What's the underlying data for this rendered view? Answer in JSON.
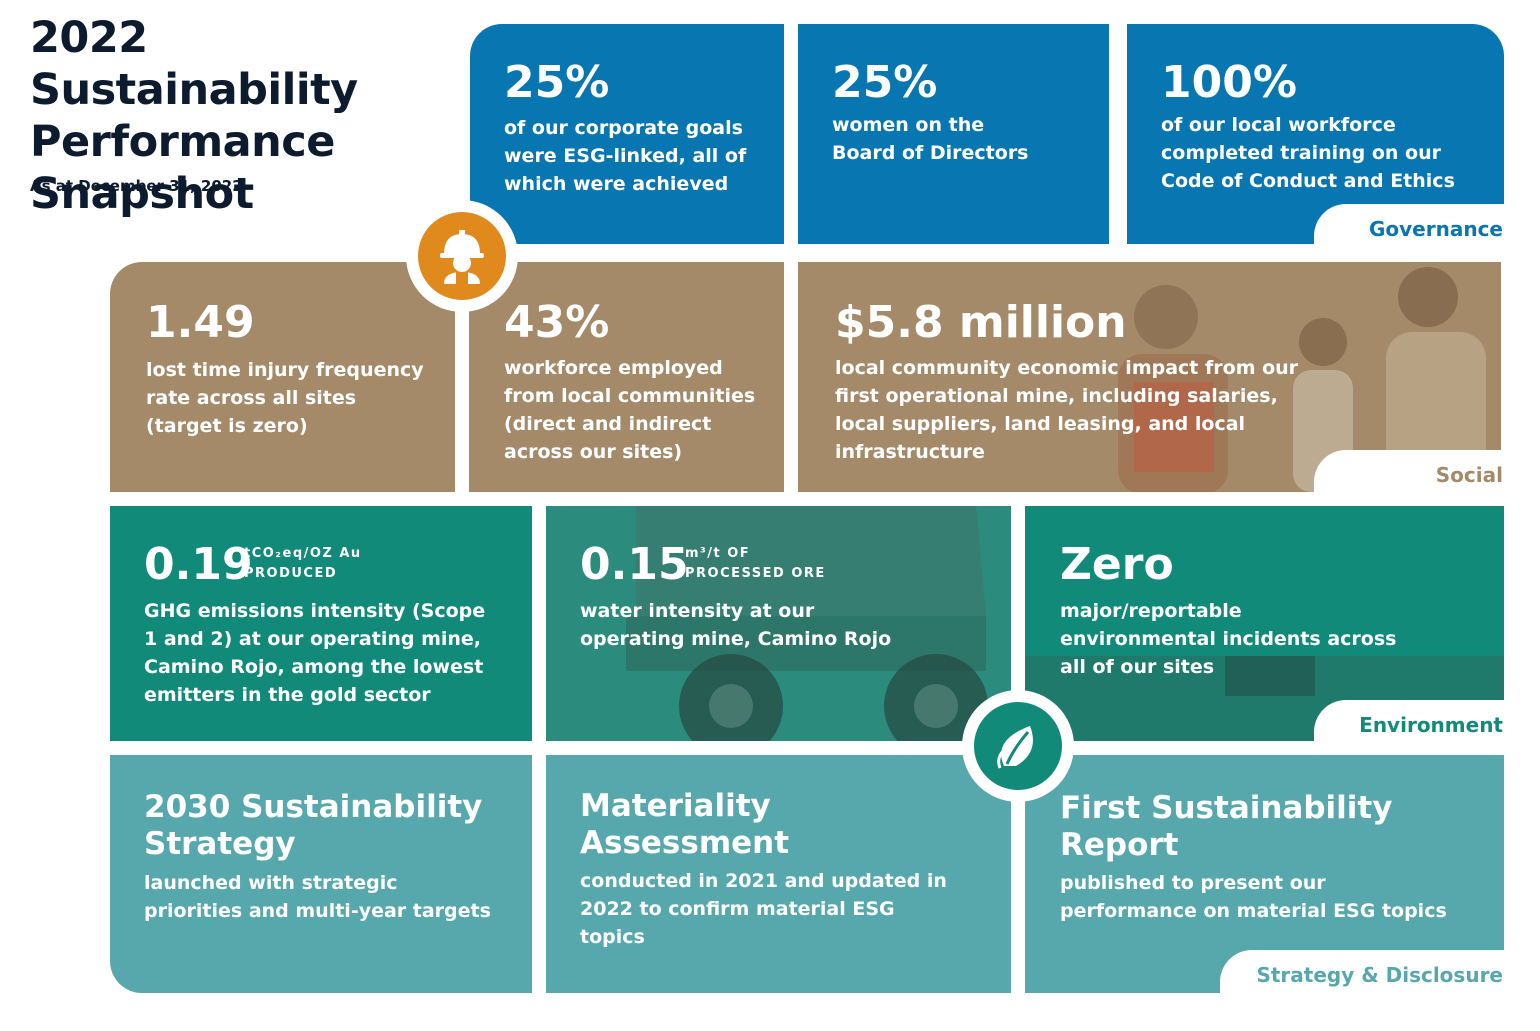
{
  "header": {
    "title": "2022 Sustainability Performance Snapshot",
    "date": "As at December 31, 2022"
  },
  "sections": {
    "governance": "Governance",
    "social": "Social",
    "environment": "Environment",
    "strategy": "Strategy & Disclosure"
  },
  "governance": [
    {
      "value": "25%",
      "text": "of our corporate goals were ESG-linked, all of which were achieved"
    },
    {
      "value": "25%",
      "text": "women on the Board of Directors"
    },
    {
      "value": "100%",
      "text": "of our local workforce completed training on our Code of Conduct and Ethics"
    }
  ],
  "social": [
    {
      "value": "1.49",
      "text": "lost time injury frequency rate across all sites (target is zero)"
    },
    {
      "value": "43%",
      "text": "workforce employed from local communities (direct and indirect across our sites)"
    },
    {
      "value": "$5.8 million",
      "text": "local community economic impact from our first operational mine, including salaries, local suppliers, land leasing, and local infrastructure"
    }
  ],
  "environment": [
    {
      "value": "0.19",
      "unit_line1": "tCO₂eq/OZ Au",
      "unit_line2": "PRODUCED",
      "text": "GHG emissions intensity (Scope 1 and 2) at our operating mine, Camino Rojo, among the lowest emitters in the gold sector"
    },
    {
      "value": "0.15",
      "unit_line1": "m³/t OF",
      "unit_line2": "PROCESSED ORE",
      "text": "water intensity at our operating mine, Camino Rojo"
    },
    {
      "value": "Zero",
      "text": "major/reportable environmental incidents across all of our sites"
    }
  ],
  "strategy": [
    {
      "title": "2030 Sustainability Strategy",
      "text": "launched with strategic priorities and multi-year targets"
    },
    {
      "title": "Materiality Assessment",
      "text": "conducted in 2021 and updated in 2022 to confirm material ESG topics"
    },
    {
      "title": "First Sustainability Report",
      "text": "published to present our performance on material ESG topics"
    }
  ],
  "icons": {
    "social": "worker-hardhat-icon",
    "environment": "leaf-icon"
  },
  "colors": {
    "governance": "#0876b1",
    "social": "#a48a68",
    "environment": "#128a7a",
    "strategy": "#57a8ad",
    "badge_orange": "#e08a1e",
    "navy": "#0d1b2e"
  }
}
